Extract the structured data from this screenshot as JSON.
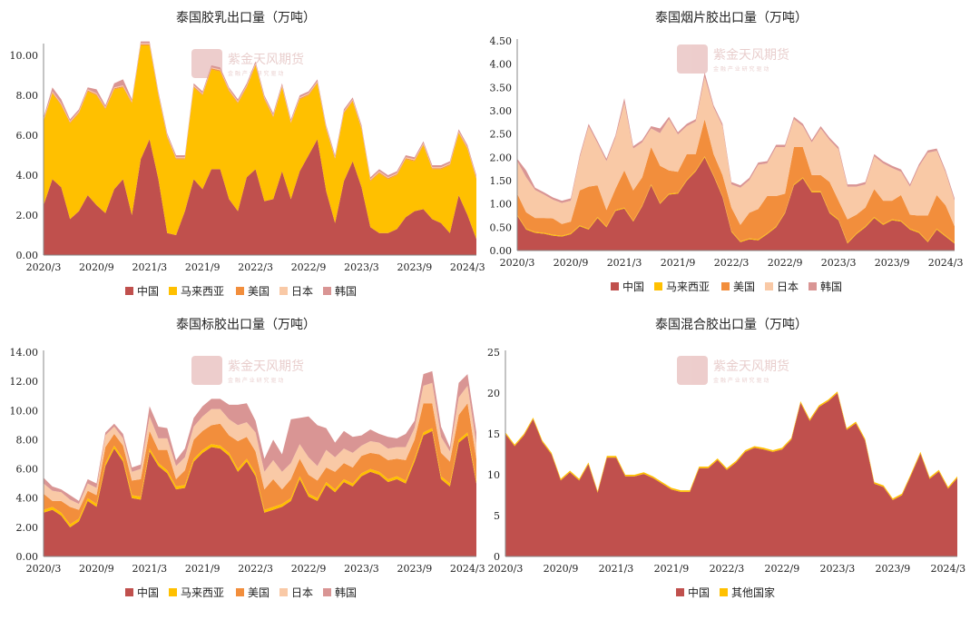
{
  "watermark": {
    "logo_text": "紫金天风",
    "name": "紫金天风期货",
    "slogan": "金 融 产 业   研 究 驱 动"
  },
  "colors": {
    "china": "#c0504d",
    "malaysia": "#ffc000",
    "usa": "#f28e3c",
    "japan": "#f9c9a6",
    "korea": "#d99594",
    "others": "#ffc000"
  },
  "chart_data": [
    {
      "type": "area",
      "stacked": true,
      "title": "泰国胶乳出口量（万吨）",
      "ylim": [
        0,
        10.5
      ],
      "yticks": [
        "0.00",
        "2.00",
        "4.00",
        "6.00",
        "8.00",
        "10.00"
      ],
      "ytick_values": [
        0,
        2,
        4,
        6,
        8,
        10
      ],
      "x_start": "2020/3",
      "xticks": [
        "2020/3",
        "2020/9",
        "2021/3",
        "2021/9",
        "2022/3",
        "2022/9",
        "2023/3",
        "2023/9",
        "2024/3"
      ],
      "legend": [
        "中国",
        "马来西亚",
        "美国",
        "日本",
        "韩国"
      ],
      "legend_position": "bottom",
      "series": [
        {
          "name": "中国",
          "color_key": "china",
          "values": [
            2.5,
            3.8,
            3.4,
            1.8,
            2.2,
            3.0,
            2.5,
            2.1,
            3.3,
            3.8,
            2.0,
            4.8,
            5.8,
            3.8,
            1.1,
            1.0,
            2.2,
            3.8,
            3.3,
            4.3,
            4.3,
            2.8,
            2.2,
            3.9,
            4.3,
            2.7,
            2.8,
            4.2,
            2.8,
            4.2,
            5.0,
            5.8,
            3.2,
            1.6,
            3.7,
            4.7,
            3.4,
            1.4,
            1.1,
            1.1,
            1.3,
            1.9,
            2.2,
            2.3,
            1.8,
            1.6,
            1.1,
            3.0,
            2.0,
            0.8
          ]
        },
        {
          "name": "马来西亚",
          "color_key": "malaysia",
          "values": [
            4.2,
            4.3,
            4.1,
            4.8,
            4.9,
            5.2,
            5.5,
            5.2,
            5.0,
            4.6,
            5.6,
            5.7,
            4.7,
            4.2,
            4.8,
            3.8,
            2.6,
            4.6,
            4.7,
            5.0,
            4.9,
            5.4,
            5.4,
            4.5,
            5.2,
            5.1,
            4.1,
            4.2,
            3.8,
            3.6,
            3.0,
            2.8,
            3.1,
            3.2,
            3.4,
            3.0,
            2.9,
            2.3,
            3.0,
            2.7,
            2.7,
            2.9,
            2.5,
            3.2,
            2.5,
            2.7,
            3.4,
            3.1,
            3.3,
            3.0
          ]
        },
        {
          "name": "美国",
          "color_key": "usa",
          "values": [
            0.05,
            0.05,
            0.05,
            0.05,
            0.05,
            0.05,
            0.05,
            0.05,
            0.05,
            0.05,
            0.05,
            0.05,
            0.05,
            0.05,
            0.05,
            0.05,
            0.05,
            0.05,
            0.05,
            0.05,
            0.05,
            0.05,
            0.05,
            0.05,
            0.05,
            0.05,
            0.05,
            0.05,
            0.05,
            0.05,
            0.05,
            0.05,
            0.05,
            0.05,
            0.05,
            0.05,
            0.05,
            0.05,
            0.05,
            0.05,
            0.05,
            0.05,
            0.05,
            0.05,
            0.05,
            0.05,
            0.05,
            0.05,
            0.05,
            0.05
          ]
        },
        {
          "name": "日本",
          "color_key": "japan",
          "values": [
            0.05,
            0.05,
            0.05,
            0.05,
            0.05,
            0.05,
            0.05,
            0.05,
            0.05,
            0.05,
            0.05,
            0.05,
            0.05,
            0.05,
            0.05,
            0.05,
            0.05,
            0.05,
            0.05,
            0.05,
            0.05,
            0.05,
            0.05,
            0.05,
            0.05,
            0.05,
            0.05,
            0.05,
            0.05,
            0.05,
            0.05,
            0.05,
            0.05,
            0.05,
            0.05,
            0.05,
            0.05,
            0.05,
            0.05,
            0.05,
            0.05,
            0.05,
            0.05,
            0.05,
            0.05,
            0.05,
            0.05,
            0.05,
            0.05,
            0.05
          ]
        },
        {
          "name": "韩国",
          "color_key": "korea",
          "values": [
            0.1,
            0.2,
            0.2,
            0.1,
            0.1,
            0.1,
            0.2,
            0.1,
            0.2,
            0.3,
            0.1,
            0.1,
            0.1,
            0.1,
            0.1,
            0.1,
            0.1,
            0.1,
            0.1,
            0.1,
            0.1,
            0.1,
            0.1,
            0.1,
            0.1,
            0.1,
            0.1,
            0.1,
            0.1,
            0.1,
            0.1,
            0.1,
            0.1,
            0.1,
            0.1,
            0.1,
            0.1,
            0.1,
            0.1,
            0.1,
            0.1,
            0.1,
            0.1,
            0.1,
            0.1,
            0.1,
            0.1,
            0.1,
            0.1,
            0.1
          ]
        }
      ]
    },
    {
      "type": "area",
      "stacked": true,
      "title": "泰国烟片胶出口量（万吨）",
      "ylim": [
        0,
        4.5
      ],
      "yticks": [
        "0.00",
        "0.50",
        "1.00",
        "1.50",
        "2.00",
        "2.50",
        "3.00",
        "3.50",
        "4.00",
        "4.50"
      ],
      "ytick_values": [
        0,
        0.5,
        1,
        1.5,
        2,
        2.5,
        3,
        3.5,
        4,
        4.5
      ],
      "x_start": "2020/3",
      "xticks": [
        "2020/3",
        "2020/9",
        "2021/3",
        "2021/9",
        "2022/3",
        "2022/9",
        "2023/3",
        "2023/9",
        "2024/3"
      ],
      "legend": [
        "中国",
        "马来西亚",
        "美国",
        "日本",
        "韩国"
      ],
      "legend_position": "bottom",
      "series": [
        {
          "name": "中国",
          "color_key": "china",
          "values": [
            0.75,
            0.45,
            0.38,
            0.36,
            0.32,
            0.3,
            0.35,
            0.52,
            0.45,
            0.7,
            0.5,
            0.85,
            0.9,
            0.62,
            0.95,
            1.4,
            1.0,
            1.2,
            1.22,
            1.5,
            1.7,
            2.0,
            1.6,
            1.15,
            0.4,
            0.18,
            0.24,
            0.22,
            0.35,
            0.5,
            0.8,
            1.4,
            1.55,
            1.25,
            1.25,
            0.8,
            0.65,
            0.15,
            0.35,
            0.5,
            0.7,
            0.55,
            0.65,
            0.62,
            0.45,
            0.38,
            0.18,
            0.45,
            0.3,
            0.15
          ]
        },
        {
          "name": "马来西亚",
          "color_key": "malaysia",
          "values": [
            0.02,
            0.02,
            0.02,
            0.02,
            0.02,
            0.02,
            0.02,
            0.02,
            0.02,
            0.02,
            0.02,
            0.02,
            0.02,
            0.02,
            0.02,
            0.02,
            0.02,
            0.02,
            0.02,
            0.02,
            0.02,
            0.02,
            0.02,
            0.02,
            0.02,
            0.02,
            0.02,
            0.02,
            0.02,
            0.02,
            0.02,
            0.02,
            0.02,
            0.02,
            0.02,
            0.02,
            0.02,
            0.02,
            0.02,
            0.02,
            0.02,
            0.02,
            0.02,
            0.02,
            0.02,
            0.02,
            0.02,
            0.02,
            0.02,
            0.02
          ]
        },
        {
          "name": "美国",
          "color_key": "usa",
          "values": [
            0.45,
            0.35,
            0.3,
            0.32,
            0.35,
            0.25,
            0.25,
            0.75,
            0.9,
            0.68,
            0.35,
            0.45,
            0.8,
            0.65,
            0.6,
            0.8,
            0.8,
            0.5,
            0.45,
            0.55,
            0.35,
            0.8,
            0.45,
            0.45,
            0.5,
            0.35,
            0.55,
            0.65,
            0.8,
            0.65,
            0.4,
            0.8,
            0.65,
            0.35,
            0.35,
            0.65,
            0.4,
            0.5,
            0.4,
            0.4,
            0.6,
            0.5,
            0.4,
            0.55,
            0.3,
            0.35,
            0.55,
            0.72,
            0.65,
            0.35
          ]
        },
        {
          "name": "日本",
          "color_key": "japan",
          "values": [
            0.7,
            0.75,
            0.6,
            0.5,
            0.4,
            0.45,
            0.45,
            0.7,
            1.3,
            0.9,
            1.05,
            1.1,
            1.45,
            0.9,
            0.75,
            0.4,
            0.7,
            1.1,
            0.8,
            0.6,
            0.7,
            0.9,
            1.0,
            1.05,
            0.5,
            0.8,
            0.7,
            0.95,
            0.7,
            1.05,
            1.0,
            0.6,
            0.45,
            0.7,
            1.0,
            0.9,
            1.1,
            0.7,
            0.6,
            0.5,
            0.7,
            0.8,
            0.7,
            0.5,
            0.6,
            1.05,
            1.35,
            0.95,
            0.7,
            0.55
          ]
        },
        {
          "name": "韩国",
          "color_key": "korea",
          "values": [
            0.05,
            0.15,
            0.05,
            0.05,
            0.05,
            0.05,
            0.05,
            0.05,
            0.05,
            0.05,
            0.05,
            0.05,
            0.1,
            0.05,
            0.05,
            0.05,
            0.1,
            0.05,
            0.05,
            0.05,
            0.05,
            0.1,
            0.05,
            0.05,
            0.05,
            0.05,
            0.05,
            0.05,
            0.05,
            0.05,
            0.05,
            0.05,
            0.05,
            0.05,
            0.05,
            0.05,
            0.05,
            0.05,
            0.05,
            0.05,
            0.05,
            0.05,
            0.05,
            0.05,
            0.05,
            0.05,
            0.05,
            0.05,
            0.05,
            0.05
          ]
        }
      ]
    },
    {
      "type": "area",
      "stacked": true,
      "title": "泰国标胶出口量（万吨）",
      "ylim": [
        0,
        14
      ],
      "yticks": [
        "0.00",
        "2.00",
        "4.00",
        "6.00",
        "8.00",
        "10.00",
        "12.00",
        "14.00"
      ],
      "ytick_values": [
        0,
        2,
        4,
        6,
        8,
        10,
        12,
        14
      ],
      "x_start": "2020/3",
      "xticks": [
        "2020/3",
        "2020/9",
        "2021/3",
        "2021/9",
        "2022/3",
        "2022/9",
        "2023/3",
        "2023/9",
        "2024/3"
      ],
      "legend": [
        "中国",
        "马来西亚",
        "美国",
        "日本",
        "韩国"
      ],
      "legend_position": "bottom",
      "series": [
        {
          "name": "中国",
          "color_key": "china",
          "values": [
            3.0,
            3.2,
            2.8,
            2.0,
            2.4,
            3.8,
            3.4,
            6.2,
            7.4,
            6.5,
            4.0,
            3.9,
            7.2,
            6.2,
            5.7,
            4.6,
            4.7,
            6.5,
            7.1,
            7.5,
            7.4,
            6.9,
            5.8,
            6.5,
            5.5,
            3.0,
            3.2,
            3.4,
            3.8,
            5.3,
            4.1,
            3.8,
            4.9,
            4.4,
            5.1,
            4.8,
            5.5,
            5.8,
            5.6,
            5.1,
            5.3,
            5.0,
            6.5,
            8.3,
            8.6,
            5.3,
            4.8,
            7.8,
            8.3,
            5.0
          ]
        },
        {
          "name": "马来西亚",
          "color_key": "malaysia",
          "values": [
            0.2,
            0.2,
            0.2,
            0.2,
            0.2,
            0.2,
            0.2,
            0.2,
            0.2,
            0.2,
            0.2,
            0.2,
            0.2,
            0.2,
            0.2,
            0.2,
            0.2,
            0.2,
            0.2,
            0.2,
            0.2,
            0.2,
            0.2,
            0.2,
            0.2,
            0.2,
            0.2,
            0.2,
            0.2,
            0.2,
            0.2,
            0.2,
            0.2,
            0.2,
            0.2,
            0.2,
            0.2,
            0.2,
            0.2,
            0.2,
            0.2,
            0.2,
            0.2,
            0.2,
            0.2,
            0.2,
            0.2,
            0.2,
            0.2,
            0.2
          ]
        },
        {
          "name": "美国",
          "color_key": "usa",
          "values": [
            1.1,
            0.4,
            0.8,
            1.2,
            0.6,
            0.5,
            0.6,
            1.1,
            0.8,
            0.9,
            1.0,
            1.2,
            1.2,
            0.9,
            1.4,
            0.5,
            1.0,
            1.3,
            1.3,
            1.3,
            1.5,
            1.2,
            1.9,
            1.5,
            1.5,
            1.4,
            1.9,
            1.0,
            1.3,
            1.2,
            1.3,
            1.2,
            1.0,
            1.2,
            1.1,
            1.1,
            1.2,
            1.1,
            1.2,
            1.3,
            1.2,
            1.4,
            1.3,
            2.0,
            1.7,
            1.6,
            1.5,
            1.7,
            2.0,
            1.5
          ]
        },
        {
          "name": "日本",
          "color_key": "japan",
          "values": [
            0.7,
            0.7,
            0.6,
            0.5,
            0.4,
            0.5,
            0.5,
            0.8,
            0.5,
            0.5,
            0.6,
            0.7,
            1.0,
            0.8,
            0.8,
            0.9,
            0.9,
            0.9,
            1.0,
            1.1,
            1.0,
            1.1,
            1.1,
            1.0,
            1.3,
            1.2,
            1.3,
            1.2,
            1.1,
            1.0,
            1.2,
            1.0,
            1.2,
            1.0,
            1.0,
            1.0,
            0.7,
            0.8,
            0.8,
            0.8,
            0.8,
            0.9,
            0.8,
            1.2,
            1.4,
            1.1,
            0.7,
            1.2,
            1.2,
            1.0
          ]
        },
        {
          "name": "韩国",
          "color_key": "korea",
          "values": [
            0.4,
            0.3,
            0.2,
            0.3,
            0.2,
            0.3,
            0.3,
            0.2,
            0.2,
            0.3,
            0.3,
            0.3,
            0.7,
            0.8,
            0.7,
            0.4,
            0.6,
            0.6,
            0.7,
            0.7,
            0.7,
            1.0,
            1.4,
            1.3,
            0.8,
            0.9,
            1.4,
            1.2,
            3.0,
            1.8,
            2.8,
            2.8,
            1.5,
            1.0,
            1.2,
            1.1,
            0.7,
            0.8,
            0.6,
            0.8,
            0.6,
            0.9,
            0.5,
            0.8,
            0.8,
            0.7,
            0.3,
            1.0,
            0.8,
            0.8
          ]
        }
      ]
    },
    {
      "type": "area",
      "stacked": true,
      "title": "泰国混合胶出口量（万吨）",
      "ylim": [
        0,
        25
      ],
      "yticks": [
        "0",
        "5",
        "10",
        "15",
        "20",
        "25"
      ],
      "ytick_values": [
        0,
        5,
        10,
        15,
        20,
        25
      ],
      "x_start": "2020/3",
      "xticks": [
        "2020/3",
        "2020/9",
        "2021/3",
        "2021/9",
        "2022/3",
        "2022/9",
        "2023/3",
        "2023/9",
        "2024/3"
      ],
      "legend": [
        "中国",
        "其他国家"
      ],
      "legend_position": "bottom",
      "series": [
        {
          "name": "中国",
          "color_key": "china",
          "values": [
            15.0,
            13.5,
            14.8,
            16.8,
            14.0,
            12.5,
            9.3,
            10.3,
            9.3,
            11.3,
            7.8,
            12.1,
            12.1,
            9.8,
            9.8,
            10.1,
            9.6,
            8.9,
            8.2,
            7.9,
            7.9,
            10.8,
            10.8,
            11.8,
            10.6,
            11.5,
            12.8,
            13.3,
            13.1,
            12.8,
            13.1,
            14.3,
            18.8,
            16.6,
            18.3,
            19.0,
            20.0,
            15.5,
            16.3,
            14.2,
            8.9,
            8.5,
            6.9,
            7.5,
            10.0,
            12.6,
            9.5,
            10.4,
            8.3,
            9.6
          ]
        },
        {
          "name": "其他国家",
          "color_key": "others",
          "values": [
            0.2,
            0.2,
            0.2,
            0.2,
            0.2,
            0.2,
            0.2,
            0.2,
            0.2,
            0.2,
            0.2,
            0.2,
            0.2,
            0.2,
            0.2,
            0.2,
            0.2,
            0.2,
            0.2,
            0.2,
            0.2,
            0.2,
            0.2,
            0.2,
            0.2,
            0.2,
            0.2,
            0.2,
            0.2,
            0.2,
            0.2,
            0.2,
            0.2,
            0.2,
            0.2,
            0.2,
            0.2,
            0.2,
            0.2,
            0.2,
            0.2,
            0.2,
            0.2,
            0.2,
            0.2,
            0.2,
            0.2,
            0.2,
            0.2,
            0.2
          ]
        }
      ]
    }
  ]
}
